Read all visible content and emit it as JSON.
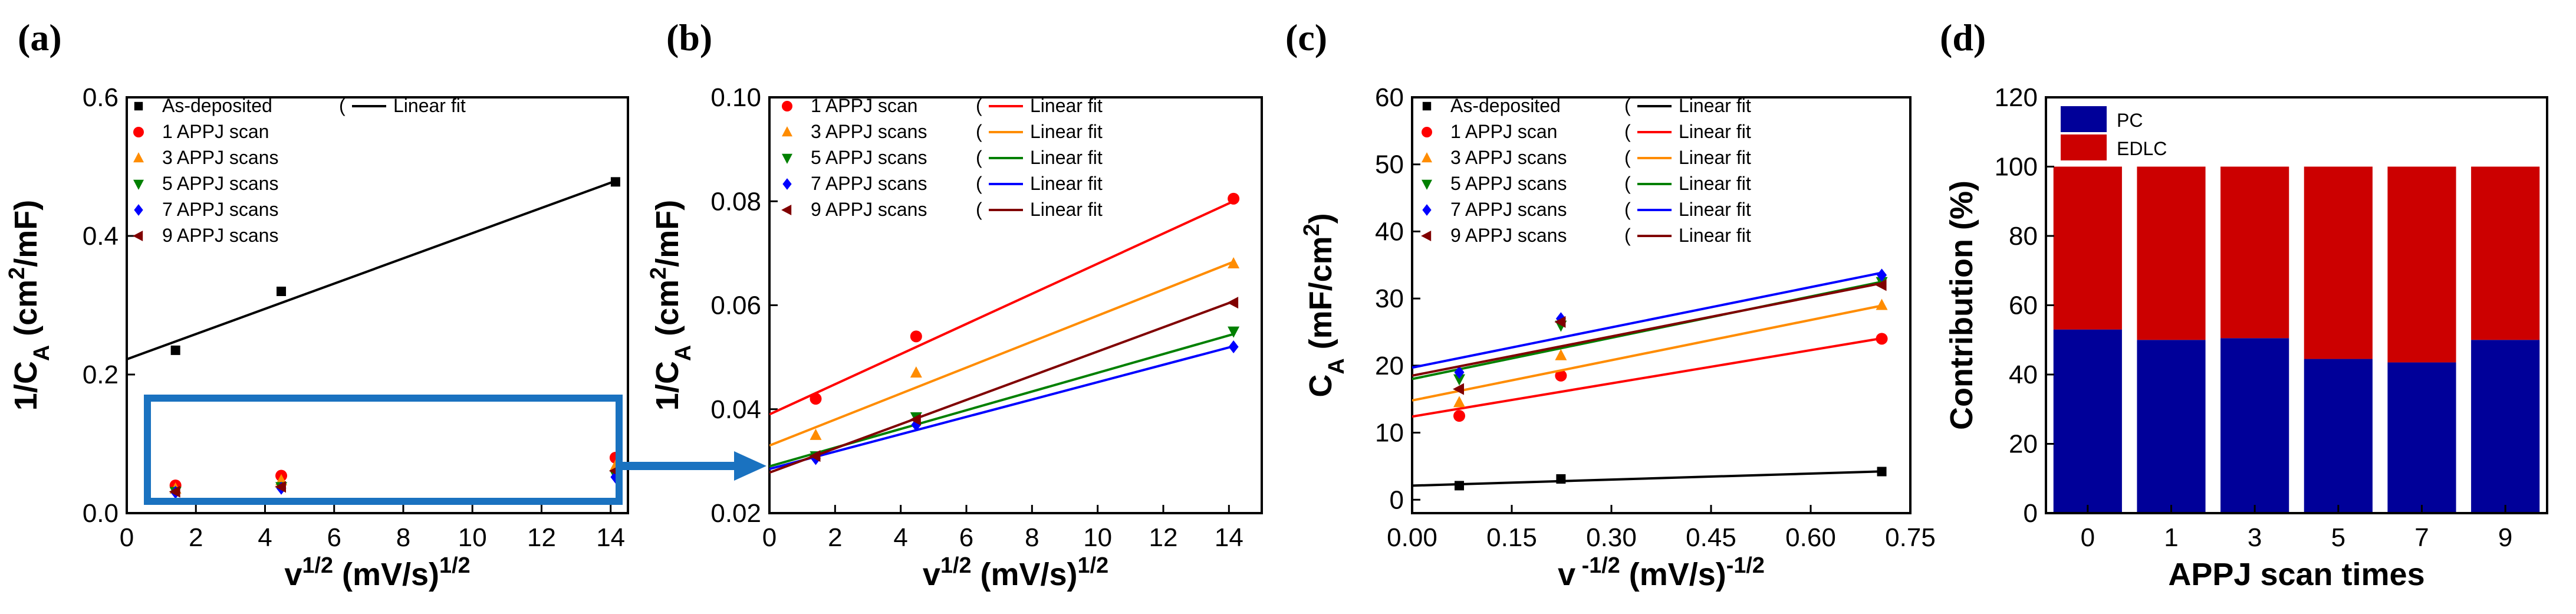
{
  "panels": [
    {
      "label": "(a)"
    },
    {
      "label": "(b)"
    },
    {
      "label": "(c)"
    },
    {
      "label": "(d)"
    }
  ],
  "chart_data": [
    {
      "id": "a",
      "type": "scatter",
      "xlabel": "v1/2 (mV/s)1/2",
      "ylabel": "1/CA (cm2/mF)",
      "xlim": [
        0,
        14.5
      ],
      "ylim": [
        0,
        0.6
      ],
      "xticks": [
        "0",
        "2",
        "4",
        "6",
        "8",
        "10",
        "12",
        "14"
      ],
      "yticks": [
        "0.0",
        "0.2",
        "0.4",
        "0.6"
      ],
      "fit_label": "Linear fit",
      "series": [
        {
          "name": "As-deposited",
          "color": "#000000",
          "marker": "square",
          "x": [
            1.41,
            4.47,
            14.14
          ],
          "y": [
            0.235,
            0.32,
            0.478
          ],
          "fit": [
            0.222,
            0.0182
          ]
        },
        {
          "name": "1 APPJ scan",
          "color": "#ff0000",
          "marker": "circle",
          "x": [
            1.41,
            4.47,
            14.14
          ],
          "y": [
            0.04,
            0.054,
            0.08
          ]
        },
        {
          "name": "3 APPJ scans",
          "color": "#ff8c00",
          "marker": "triangle-up",
          "x": [
            1.41,
            4.47,
            14.14
          ],
          "y": [
            0.035,
            0.047,
            0.068
          ]
        },
        {
          "name": "5 APPJ scans",
          "color": "#008000",
          "marker": "triangle-down",
          "x": [
            1.41,
            4.47,
            14.14
          ],
          "y": [
            0.031,
            0.038,
            0.055
          ]
        },
        {
          "name": "7 APPJ scans",
          "color": "#0000ff",
          "marker": "diamond",
          "x": [
            1.41,
            4.47,
            14.14
          ],
          "y": [
            0.03,
            0.036,
            0.052
          ]
        },
        {
          "name": "9 APPJ scans",
          "color": "#800000",
          "marker": "triangle-left",
          "x": [
            1.41,
            4.47,
            14.14
          ],
          "y": [
            0.031,
            0.038,
            0.061
          ]
        }
      ]
    },
    {
      "id": "b",
      "type": "scatter",
      "xlabel": "v1/2 (mV/s)1/2",
      "ylabel": "1/CA (cm2/mF)",
      "xlim": [
        0,
        15
      ],
      "ylim": [
        0.02,
        0.1
      ],
      "xticks": [
        "0",
        "2",
        "4",
        "6",
        "8",
        "10",
        "12",
        "14"
      ],
      "yticks": [
        "0.02",
        "0.04",
        "0.06",
        "0.08",
        "0.10"
      ],
      "fit_label": "Linear fit",
      "series": [
        {
          "name": "1 APPJ scan",
          "color": "#ff0000",
          "marker": "circle",
          "x": [
            1.41,
            4.47,
            14.14
          ],
          "y": [
            0.042,
            0.054,
            0.0805
          ],
          "fit": [
            0.039,
            0.0029
          ]
        },
        {
          "name": "3 APPJ scans",
          "color": "#ff8c00",
          "marker": "triangle-up",
          "x": [
            1.41,
            4.47,
            14.14
          ],
          "y": [
            0.035,
            0.047,
            0.068
          ],
          "fit": [
            0.033,
            0.0025
          ]
        },
        {
          "name": "5 APPJ scans",
          "color": "#008000",
          "marker": "triangle-down",
          "x": [
            1.41,
            4.47,
            14.14
          ],
          "y": [
            0.031,
            0.0385,
            0.055
          ],
          "fit": [
            0.029,
            0.0018
          ]
        },
        {
          "name": "7 APPJ scans",
          "color": "#0000ff",
          "marker": "diamond",
          "x": [
            1.41,
            4.47,
            14.14
          ],
          "y": [
            0.0305,
            0.037,
            0.052
          ],
          "fit": [
            0.0285,
            0.00167
          ]
        },
        {
          "name": "9 APPJ scans",
          "color": "#800000",
          "marker": "triangle-left",
          "x": [
            1.41,
            4.47,
            14.14
          ],
          "y": [
            0.031,
            0.038,
            0.0605
          ],
          "fit": [
            0.0278,
            0.00233
          ]
        }
      ]
    },
    {
      "id": "c",
      "type": "scatter",
      "xlabel": "v -1/2 (mV/s)-1/2",
      "ylabel": "CA (mF/cm2)",
      "xlim": [
        0,
        0.75
      ],
      "ylim": [
        -2,
        60
      ],
      "xticks": [
        "0.00",
        "0.15",
        "0.30",
        "0.45",
        "0.60",
        "0.75"
      ],
      "yticks": [
        "0",
        "10",
        "20",
        "30",
        "40",
        "50",
        "60"
      ],
      "fit_label": "Linear fit",
      "series": [
        {
          "name": "As-deposited",
          "color": "#000000",
          "marker": "square",
          "x": [
            0.071,
            0.224,
            0.707
          ],
          "y": [
            2.1,
            3.1,
            4.2
          ],
          "fit": [
            2.1,
            3.0
          ]
        },
        {
          "name": "1 APPJ scan",
          "color": "#ff0000",
          "marker": "circle",
          "x": [
            0.071,
            0.224,
            0.707
          ],
          "y": [
            12.5,
            18.5,
            24.0
          ],
          "fit": [
            12.4,
            16.5
          ]
        },
        {
          "name": "3 APPJ scans",
          "color": "#ff8c00",
          "marker": "triangle-up",
          "x": [
            0.071,
            0.224,
            0.707
          ],
          "y": [
            14.5,
            21.5,
            29.0
          ],
          "fit": [
            14.8,
            20.0
          ]
        },
        {
          "name": "5 APPJ scans",
          "color": "#008000",
          "marker": "triangle-down",
          "x": [
            0.071,
            0.224,
            0.707
          ],
          "y": [
            18.0,
            26.0,
            32.5
          ],
          "fit": [
            18.0,
            20.5
          ]
        },
        {
          "name": "7 APPJ scans",
          "color": "#0000ff",
          "marker": "diamond",
          "x": [
            0.071,
            0.224,
            0.707
          ],
          "y": [
            19.0,
            27.0,
            33.5
          ],
          "fit": [
            19.7,
            20.0
          ]
        },
        {
          "name": "9 APPJ scans",
          "color": "#800000",
          "marker": "triangle-left",
          "x": [
            0.071,
            0.224,
            0.707
          ],
          "y": [
            16.5,
            26.5,
            32.0
          ],
          "fit": [
            18.5,
            19.5
          ]
        }
      ]
    },
    {
      "id": "d",
      "type": "bar",
      "stacked": true,
      "xlabel": "APPJ scan times",
      "ylabel": "Contribution (%)",
      "ylim": [
        0,
        120
      ],
      "yticks": [
        "0",
        "20",
        "40",
        "60",
        "80",
        "100",
        "120"
      ],
      "categories": [
        "0",
        "1",
        "3",
        "5",
        "7",
        "9"
      ],
      "series": [
        {
          "name": "PC",
          "color": "#000099",
          "values": [
            53,
            50,
            50.5,
            44.5,
            43.5,
            50
          ]
        },
        {
          "name": "EDLC",
          "color": "#cc0000",
          "values": [
            47,
            50,
            49.5,
            55.5,
            56.5,
            50
          ]
        }
      ]
    }
  ]
}
